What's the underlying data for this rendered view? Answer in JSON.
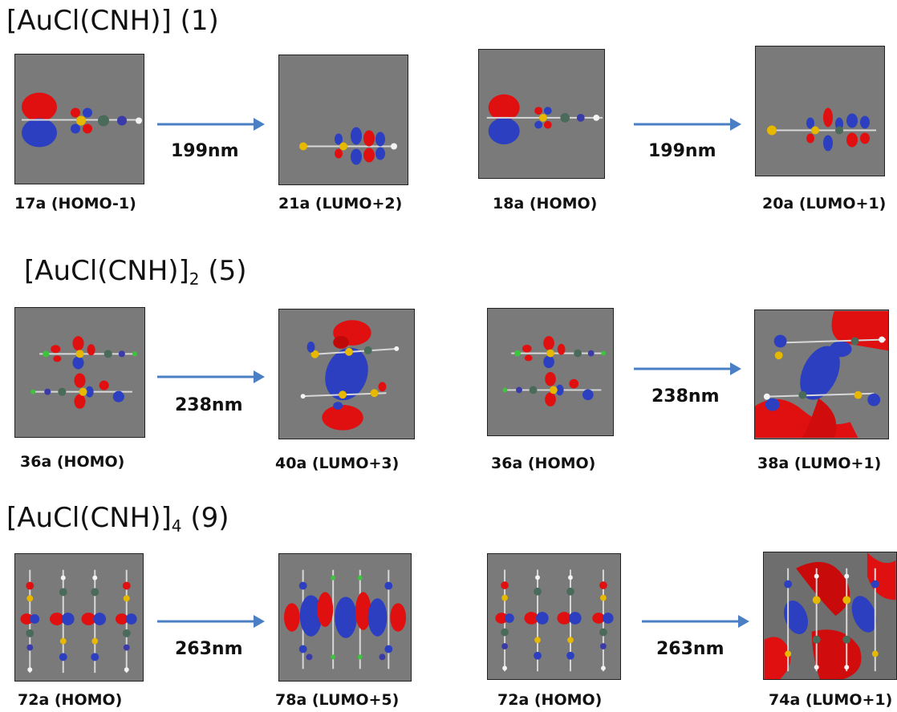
{
  "sections": [
    {
      "title": "[AuCl(CNH)] (1)",
      "title_main": "[AuCl(CNH)]",
      "title_sub": "",
      "title_tail": " (1)",
      "pairs": [
        {
          "from": "17a (HOMO-1)",
          "to": "21a (LUMO+2)",
          "wavelength": "199nm"
        },
        {
          "from": "18a (HOMO)",
          "to": "20a (LUMO+1)",
          "wavelength": "199nm"
        }
      ]
    },
    {
      "title": "[AuCl(CNH)]2 (5)",
      "title_main": "[AuCl(CNH)]",
      "title_sub": "2",
      "title_tail": " (5)",
      "pairs": [
        {
          "from": "36a (HOMO)",
          "to": "40a (LUMO+3)",
          "wavelength": "238nm"
        },
        {
          "from": "36a (HOMO)",
          "to": "38a (LUMO+1)",
          "wavelength": "238nm"
        }
      ]
    },
    {
      "title": "[AuCl(CNH)]4 (9)",
      "title_main": "[AuCl(CNH)]",
      "title_sub": "4",
      "title_tail": " (9)",
      "pairs": [
        {
          "from": "72a (HOMO)",
          "to": "78a (LUMO+5)",
          "wavelength": "263nm"
        },
        {
          "from": "72a (HOMO)",
          "to": "74a (LUMO+1)",
          "wavelength": "263nm"
        }
      ]
    }
  ],
  "colors": {
    "panel_bg": "#7a7a7a",
    "positive_lobe": "#e01010",
    "negative_lobe": "#2b3fc0",
    "arrow": "#4a7fc4",
    "bond": "#d8d8d8",
    "gold_atom": "#e6b800",
    "chlorine_atom": "#3cc43c",
    "carbon_atom": "#4a6a5a",
    "nitrogen_atom": "#3a3aa8",
    "hydrogen_atom": "#f4f4f4"
  }
}
